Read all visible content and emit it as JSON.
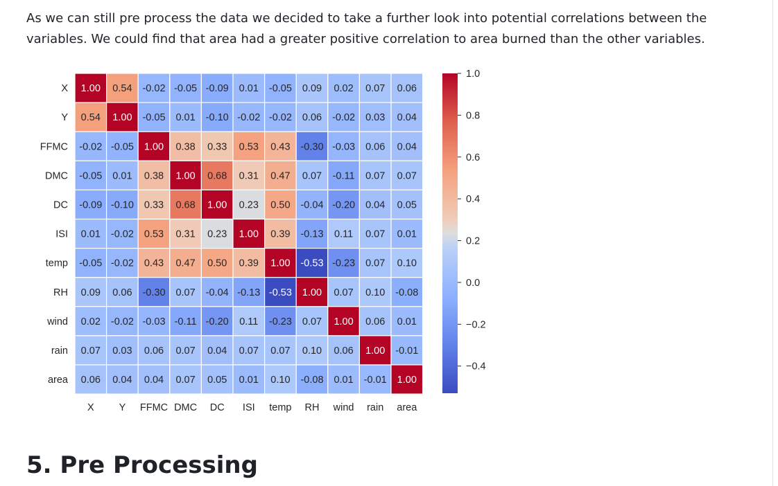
{
  "article": {
    "paragraph": "As we can still pre process the data we decided to take a further look into potential correlations between the variables. We could find that area had a greater positive correlation to area burned than the other variables.",
    "section_heading": "5. Pre Processing"
  },
  "chart_data": {
    "type": "heatmap",
    "title": "",
    "row_labels": [
      "X",
      "Y",
      "FFMC",
      "DMC",
      "DC",
      "ISI",
      "temp",
      "RH",
      "wind",
      "rain",
      "area"
    ],
    "col_labels": [
      "X",
      "Y",
      "FFMC",
      "DMC",
      "DC",
      "ISI",
      "temp",
      "RH",
      "wind",
      "rain",
      "area"
    ],
    "values": [
      [
        1.0,
        0.54,
        -0.02,
        -0.05,
        -0.09,
        0.01,
        -0.05,
        0.09,
        0.02,
        0.07,
        0.06
      ],
      [
        0.54,
        1.0,
        -0.05,
        0.01,
        -0.1,
        -0.02,
        -0.02,
        0.06,
        -0.02,
        0.03,
        0.04
      ],
      [
        -0.02,
        -0.05,
        1.0,
        0.38,
        0.33,
        0.53,
        0.43,
        -0.3,
        -0.03,
        0.06,
        0.04
      ],
      [
        -0.05,
        0.01,
        0.38,
        1.0,
        0.68,
        0.31,
        0.47,
        0.07,
        -0.11,
        0.07,
        0.07
      ],
      [
        -0.09,
        -0.1,
        0.33,
        0.68,
        1.0,
        0.23,
        0.5,
        -0.04,
        -0.2,
        0.04,
        0.05
      ],
      [
        0.01,
        -0.02,
        0.53,
        0.31,
        0.23,
        1.0,
        0.39,
        -0.13,
        0.11,
        0.07,
        0.01
      ],
      [
        -0.05,
        -0.02,
        0.43,
        0.47,
        0.5,
        0.39,
        1.0,
        -0.53,
        -0.23,
        0.07,
        0.1
      ],
      [
        0.09,
        0.06,
        -0.3,
        0.07,
        -0.04,
        -0.13,
        -0.53,
        1.0,
        0.07,
        0.1,
        -0.08
      ],
      [
        0.02,
        -0.02,
        -0.03,
        -0.11,
        -0.2,
        0.11,
        -0.23,
        0.07,
        1.0,
        0.06,
        0.01
      ],
      [
        0.07,
        0.03,
        0.06,
        0.07,
        0.04,
        0.07,
        0.07,
        0.1,
        0.06,
        1.0,
        -0.01
      ],
      [
        0.06,
        0.04,
        0.04,
        0.07,
        0.05,
        0.01,
        0.1,
        -0.08,
        0.01,
        -0.01,
        1.0
      ]
    ],
    "value_format": "2 decimals",
    "colormap": "coolwarm",
    "color_range": [
      -0.53,
      1.0
    ],
    "colorbar_ticks": [
      1.0,
      0.8,
      0.6,
      0.4,
      0.2,
      0.0,
      -0.2,
      -0.4
    ],
    "colorbar_tick_labels": [
      "1.0",
      "0.8",
      "0.6",
      "0.4",
      "0.2",
      "0.0",
      "−0.2",
      "−0.4"
    ],
    "legend_position": "right",
    "colors": {
      "low": "#3b4cc0",
      "mid": "#dddddd",
      "high": "#b40426",
      "cell_border": "#ffffff"
    }
  }
}
